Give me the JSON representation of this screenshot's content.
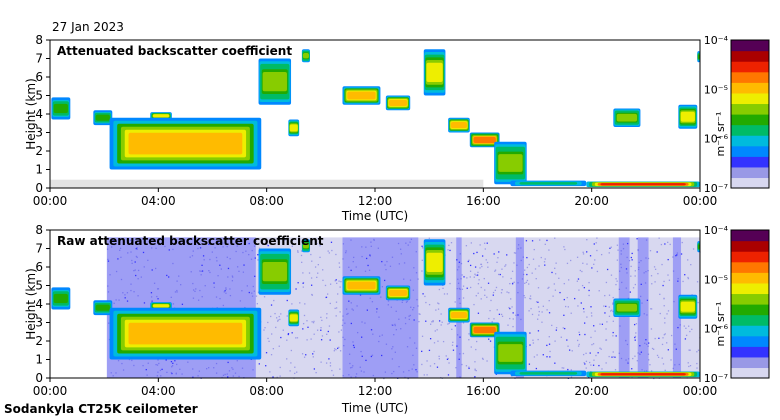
{
  "header": {
    "date": "27 Jan 2023"
  },
  "footer": {
    "site": "Sodankyla CT25K ceilometer"
  },
  "colors": {
    "scale": [
      "#d8d8f0",
      "#9999e6",
      "#3333ff",
      "#0088ff",
      "#00bbdd",
      "#00bb66",
      "#22aa00",
      "#88cc00",
      "#eeee00",
      "#ffbb00",
      "#ff7700",
      "#ee2200",
      "#aa0000",
      "#550055"
    ],
    "noise": "#c8c8c8"
  },
  "chart_data": [
    {
      "type": "heatmap",
      "title": "Attenuated backscatter coefficient",
      "xlabel": "Time (UTC)",
      "ylabel": "Height (km)",
      "xticks": [
        "00:00",
        "04:00",
        "08:00",
        "12:00",
        "16:00",
        "20:00",
        "00:00"
      ],
      "xlim": [
        0,
        24
      ],
      "ylim": [
        0,
        8
      ],
      "yticks": [
        "0",
        "1",
        "2",
        "3",
        "4",
        "5",
        "6",
        "7",
        "8"
      ],
      "colorbar": {
        "label": "m⁻¹ sr⁻¹",
        "scale": "log",
        "ticks": [
          "10⁻⁷",
          "10⁻⁶",
          "10⁻⁵",
          "10⁻⁴"
        ],
        "range": [
          1e-07,
          0.0001
        ]
      },
      "raw": false
    },
    {
      "type": "heatmap",
      "title": "Raw attenuated backscatter coefficient",
      "xlabel": "Time (UTC)",
      "ylabel": "Height (km)",
      "xticks": [
        "00:00",
        "04:00",
        "08:00",
        "12:00",
        "16:00",
        "20:00",
        "00:00"
      ],
      "xlim": [
        0,
        24
      ],
      "ylim": [
        0,
        8
      ],
      "yticks": [
        "0",
        "1",
        "2",
        "3",
        "4",
        "5",
        "6",
        "7",
        "8"
      ],
      "colorbar": {
        "label": "m⁻¹ sr⁻¹",
        "scale": "log",
        "ticks": [
          "10⁻⁷",
          "10⁻⁶",
          "10⁻⁵",
          "10⁻⁴"
        ],
        "range": [
          1e-07,
          0.0001
        ]
      },
      "raw": true
    }
  ],
  "features": [
    {
      "name": "early-layer",
      "t": [
        0.05,
        0.75
      ],
      "h": [
        3.7,
        4.9
      ],
      "level": 6
    },
    {
      "name": "layer-0130",
      "t": [
        1.6,
        2.3
      ],
      "h": [
        3.4,
        4.2
      ],
      "level": 6
    },
    {
      "name": "layer-0400",
      "t": [
        3.7,
        4.5
      ],
      "h": [
        3.7,
        4.1
      ],
      "level": 8
    },
    {
      "name": "stratocumulus",
      "t": [
        2.2,
        7.8
      ],
      "h": [
        1.0,
        3.8
      ],
      "level": 9
    },
    {
      "name": "cloud-0800",
      "t": [
        7.7,
        8.9
      ],
      "h": [
        4.5,
        7.0
      ],
      "level": 7
    },
    {
      "name": "cloud-0900",
      "t": [
        8.8,
        9.2
      ],
      "h": [
        2.8,
        3.7
      ],
      "level": 8
    },
    {
      "name": "cloud-0930",
      "t": [
        9.3,
        9.6
      ],
      "h": [
        6.8,
        7.5
      ],
      "level": 7
    },
    {
      "name": "layer-1130",
      "t": [
        10.8,
        12.2
      ],
      "h": [
        4.5,
        5.5
      ],
      "level": 9
    },
    {
      "name": "layer-1300",
      "t": [
        12.4,
        13.3
      ],
      "h": [
        4.2,
        5.0
      ],
      "level": 9
    },
    {
      "name": "cloud-1400",
      "t": [
        13.8,
        14.6
      ],
      "h": [
        5.0,
        7.5
      ],
      "level": 8
    },
    {
      "name": "layer-1500",
      "t": [
        14.7,
        15.5
      ],
      "h": [
        3.0,
        3.8
      ],
      "level": 9
    },
    {
      "name": "layer-1600",
      "t": [
        15.5,
        16.6
      ],
      "h": [
        2.2,
        3.0
      ],
      "level": 10
    },
    {
      "name": "descent-1700",
      "t": [
        16.4,
        17.6
      ],
      "h": [
        0.2,
        2.5
      ],
      "level": 7
    },
    {
      "name": "low-1800",
      "t": [
        17.0,
        19.8
      ],
      "h": [
        0.1,
        0.4
      ],
      "level": 5
    },
    {
      "name": "surface-2000",
      "t": [
        19.8,
        24.0
      ],
      "h": [
        0.05,
        0.35
      ],
      "level": 11
    },
    {
      "name": "cloud-2100",
      "t": [
        20.8,
        21.8
      ],
      "h": [
        3.3,
        4.3
      ],
      "level": 7
    },
    {
      "name": "cloud-2300",
      "t": [
        23.2,
        23.9
      ],
      "h": [
        3.2,
        4.5
      ],
      "level": 8
    },
    {
      "name": "high-2340",
      "t": [
        23.9,
        24.0
      ],
      "h": [
        6.8,
        7.4
      ],
      "level": 6
    }
  ]
}
